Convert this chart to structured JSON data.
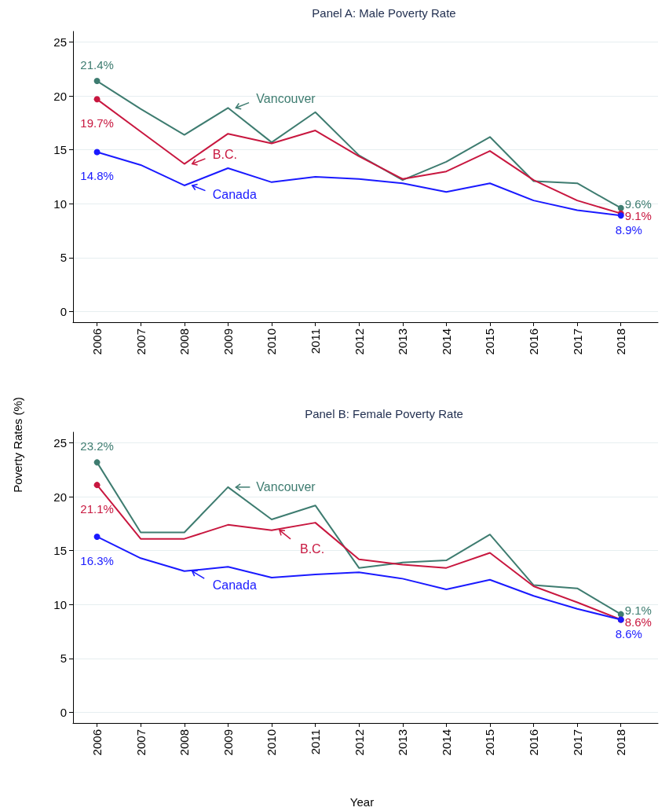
{
  "chart_data": [
    {
      "type": "line",
      "title": "Panel A: Male Poverty Rate",
      "x": [
        2006,
        2007,
        2008,
        2009,
        2010,
        2011,
        2012,
        2013,
        2014,
        2015,
        2016,
        2017,
        2018
      ],
      "xlim": [
        2005.45,
        2018.85
      ],
      "xticks": [
        2006,
        2007,
        2008,
        2009,
        2010,
        2011,
        2012,
        2013,
        2014,
        2015,
        2016,
        2017,
        2018
      ],
      "ylim": [
        -1,
        26
      ],
      "yticks": [
        0,
        5,
        10,
        15,
        20,
        25
      ],
      "grid": "y",
      "line_style": "solid",
      "series": [
        {
          "color": "#3e7c70",
          "values": [
            21.4,
            18.8,
            16.4,
            18.9,
            15.7,
            18.5,
            14.5,
            12.2,
            13.9,
            16.2,
            12.1,
            11.9,
            9.6
          ],
          "value_labels": [
            "21.4%",
            null,
            null,
            null,
            null,
            null,
            null,
            null,
            null,
            null,
            null,
            null,
            "9.6%"
          ]
        },
        {
          "color": "#c8173f",
          "values": [
            19.7,
            16.7,
            13.7,
            16.5,
            15.6,
            16.8,
            14.4,
            12.3,
            13.0,
            14.9,
            12.2,
            10.3,
            9.1
          ],
          "value_labels": [
            "19.7%",
            null,
            null,
            null,
            null,
            null,
            null,
            null,
            null,
            null,
            null,
            null,
            "9.1%"
          ]
        },
        {
          "color": "#1a1aff",
          "values": [
            14.8,
            13.6,
            11.7,
            13.3,
            12.0,
            12.5,
            12.3,
            11.9,
            11.1,
            11.9,
            10.3,
            9.4,
            8.9
          ],
          "value_labels": [
            "14.8%",
            null,
            null,
            null,
            null,
            null,
            null,
            null,
            null,
            null,
            null,
            null,
            "8.9%"
          ]
        }
      ],
      "annotations": [
        {
          "text": "Vancouver",
          "x": 2009,
          "y": 18.9
        },
        {
          "text": "B.C.",
          "x": 2008,
          "y": 13.7
        },
        {
          "text": "Canada",
          "x": 2008,
          "y": 11.7
        }
      ]
    },
    {
      "type": "line",
      "title": "Panel B: Female Poverty Rate",
      "xlabel": "Year",
      "ylabel": "Poverty Rates (%)",
      "x": [
        2006,
        2007,
        2008,
        2009,
        2010,
        2011,
        2012,
        2013,
        2014,
        2015,
        2016,
        2017,
        2018
      ],
      "xlim": [
        2005.45,
        2018.85
      ],
      "xticks": [
        2006,
        2007,
        2008,
        2009,
        2010,
        2011,
        2012,
        2013,
        2014,
        2015,
        2016,
        2017,
        2018
      ],
      "ylim": [
        -1,
        26
      ],
      "yticks": [
        0,
        5,
        10,
        15,
        20,
        25
      ],
      "grid": "y",
      "line_style": "solid",
      "series": [
        {
          "color": "#3e7c70",
          "values": [
            23.2,
            16.7,
            16.7,
            20.9,
            17.9,
            19.2,
            13.4,
            13.9,
            14.1,
            16.5,
            11.8,
            11.5,
            9.1
          ],
          "value_labels": [
            "23.2%",
            null,
            null,
            null,
            null,
            null,
            null,
            null,
            null,
            null,
            null,
            null,
            "9.1%"
          ]
        },
        {
          "color": "#c8173f",
          "values": [
            21.1,
            16.1,
            16.1,
            17.4,
            16.9,
            17.6,
            14.2,
            13.7,
            13.4,
            14.8,
            11.7,
            10.2,
            8.6
          ],
          "value_labels": [
            "21.1%",
            null,
            null,
            null,
            null,
            null,
            null,
            null,
            null,
            null,
            null,
            null,
            "8.6%"
          ]
        },
        {
          "color": "#1a1aff",
          "values": [
            16.3,
            14.3,
            13.1,
            13.5,
            12.5,
            12.8,
            13.0,
            12.4,
            11.4,
            12.3,
            10.8,
            9.6,
            8.6
          ],
          "value_labels": [
            "16.3%",
            null,
            null,
            null,
            null,
            null,
            null,
            null,
            null,
            null,
            null,
            null,
            "8.6%"
          ]
        }
      ],
      "annotations": [
        {
          "text": "Vancouver",
          "x": 2009,
          "y": 20.9
        },
        {
          "text": "B.C.",
          "x": 2010,
          "y": 16.9
        },
        {
          "text": "Canada",
          "x": 2008,
          "y": 13.1
        }
      ]
    }
  ]
}
